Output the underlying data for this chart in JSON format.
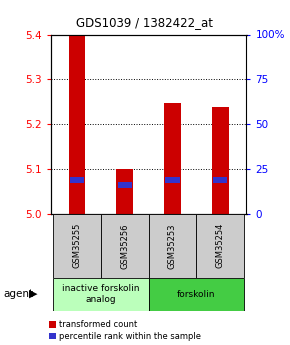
{
  "title": "GDS1039 / 1382422_at",
  "samples": [
    "GSM35255",
    "GSM35256",
    "GSM35253",
    "GSM35254"
  ],
  "bar_tops": [
    5.4,
    5.1,
    5.248,
    5.238
  ],
  "bar_bottom": 5.0,
  "percentile_values": [
    19,
    16,
    19,
    19
  ],
  "ylim_left": [
    5.0,
    5.4
  ],
  "ylim_right": [
    0,
    100
  ],
  "yticks_left": [
    5.0,
    5.1,
    5.2,
    5.3,
    5.4
  ],
  "yticks_right": [
    0,
    25,
    50,
    75,
    100
  ],
  "ytick_labels_right": [
    "0",
    "25",
    "50",
    "75",
    "100%"
  ],
  "bar_color": "#cc0000",
  "percentile_color": "#3333cc",
  "groups": [
    {
      "label": "inactive forskolin\nanalog",
      "n_samples": 2,
      "color": "#bbffbb"
    },
    {
      "label": "forskolin",
      "n_samples": 2,
      "color": "#44cc44"
    }
  ],
  "agent_label": "agent",
  "legend_transformed": "transformed count",
  "legend_percentile": "percentile rank within the sample",
  "sample_box_color": "#cccccc",
  "bar_width": 0.35
}
